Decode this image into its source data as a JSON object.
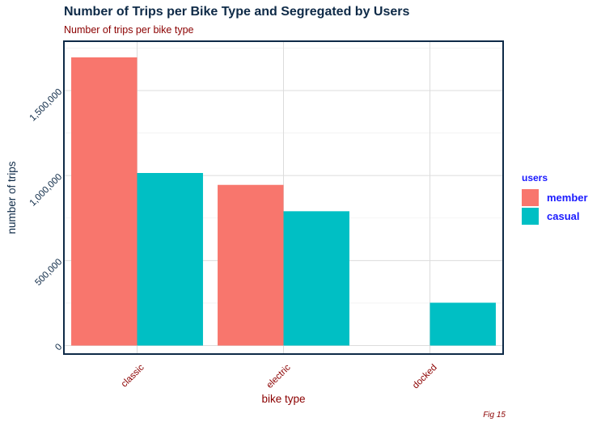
{
  "chart_data": {
    "type": "bar",
    "title": "Number of Trips per Bike Type and Segregated by Users",
    "subtitle": "Number of trips per bike type",
    "caption": "Fig 15",
    "xlabel": "bike type",
    "ylabel": "number of trips",
    "categories": [
      "classic",
      "electric",
      "docked"
    ],
    "series": [
      {
        "name": "member",
        "color": "#f8766d",
        "values": [
          1695000,
          945000,
          null
        ]
      },
      {
        "name": "casual",
        "color": "#00bfc4",
        "values": [
          1015000,
          790000,
          252000
        ]
      }
    ],
    "ylim": [
      -50000,
      1790000
    ],
    "yticks": [
      0,
      500000,
      1000000,
      1500000
    ],
    "ytick_labels": [
      "0",
      "500,000",
      "1,000,000",
      "1,500,000"
    ],
    "grid": true,
    "legend": {
      "title": "users",
      "position": "right"
    }
  }
}
